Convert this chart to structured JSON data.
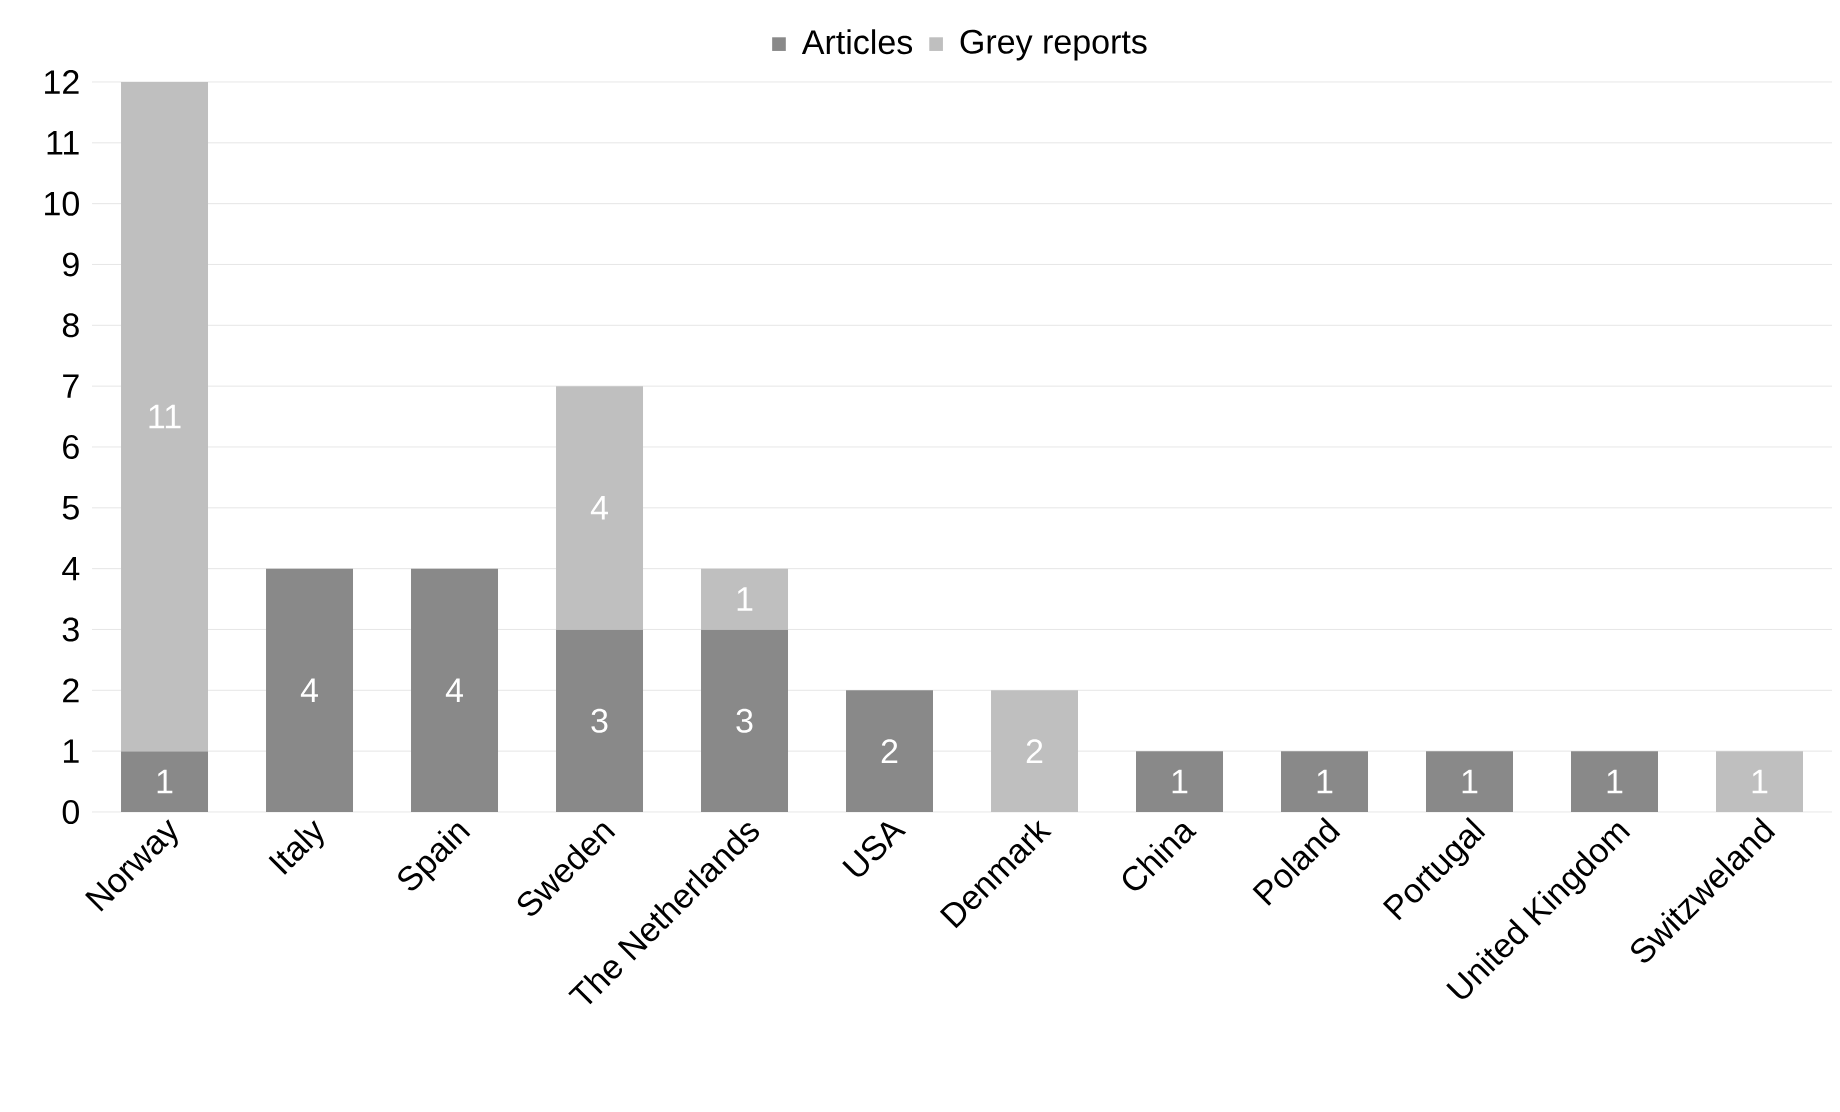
{
  "chart_data": {
    "type": "bar",
    "stacked": true,
    "categories": [
      "Norway",
      "Italy",
      "Spain",
      "Sweden",
      "The Netherlands",
      "USA",
      "Denmark",
      "China",
      "Poland",
      "Portugal",
      "United Kingdom",
      "Switzweland"
    ],
    "series": [
      {
        "name": "Articles",
        "color": "#898989",
        "values": [
          1,
          4,
          4,
          3,
          3,
          2,
          null,
          1,
          1,
          1,
          1,
          null
        ]
      },
      {
        "name": "Grey reports",
        "color": "#bfbfbf",
        "values": [
          11,
          null,
          null,
          4,
          1,
          null,
          2,
          null,
          null,
          null,
          null,
          1
        ]
      }
    ],
    "ylim": [
      0,
      12
    ],
    "yticks": [
      0,
      1,
      2,
      3,
      4,
      5,
      6,
      7,
      8,
      9,
      10,
      11,
      12
    ],
    "grid": "y",
    "legend": "top",
    "data_labels": true
  }
}
